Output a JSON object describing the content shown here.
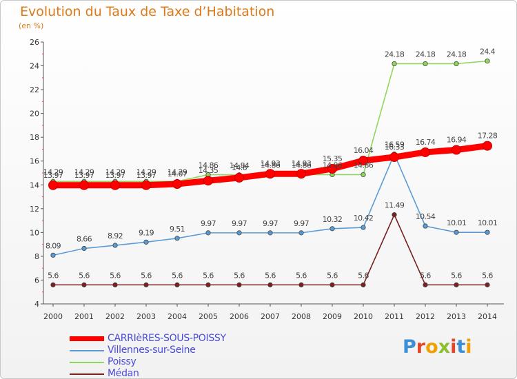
{
  "title": "Evolution du Taux de Taxe d’Habitation",
  "subtitle": "(en %)",
  "brand": {
    "name": "Proxiti",
    "letter_colors": [
      "#3a8fd6",
      "#e2452a",
      "#f0a000",
      "#8bc02c",
      "#e2452a",
      "#3a8fd6",
      "#f0a000"
    ]
  },
  "chart_data": {
    "type": "line",
    "title": "Evolution du Taux de Taxe d’Habitation",
    "ylabel": "(en %)",
    "xlabel": "",
    "x": [
      "2000",
      "2001",
      "2002",
      "2003",
      "2004",
      "2005",
      "2006",
      "2007",
      "2008",
      "2009",
      "2010",
      "2011",
      "2012",
      "2013",
      "2014"
    ],
    "ylim": [
      4,
      26
    ],
    "yticks": [
      4,
      6,
      8,
      10,
      12,
      14,
      16,
      18,
      20,
      22,
      24,
      26
    ],
    "grid": false,
    "legend_position": "bottom-left",
    "series": [
      {
        "name": "CARRIèRES-SOUS-POISSY",
        "color": "#ff0000",
        "highlight": true,
        "values": [
          13.97,
          13.97,
          13.97,
          13.97,
          14.07,
          14.35,
          14.6,
          14.93,
          14.93,
          15.35,
          16.04,
          16.33,
          16.74,
          16.94,
          17.28
        ]
      },
      {
        "name": "Villennes-sur-Seine",
        "color": "#5b9bd5",
        "highlight": false,
        "values": [
          8.09,
          8.66,
          8.92,
          9.19,
          9.51,
          9.97,
          9.97,
          9.97,
          9.97,
          10.32,
          10.42,
          16.59,
          10.54,
          10.01,
          10.01
        ]
      },
      {
        "name": "Poissy",
        "color": "#8fd65c",
        "highlight": false,
        "values": [
          14.29,
          14.29,
          14.29,
          14.29,
          14.29,
          14.86,
          14.84,
          14.86,
          14.86,
          14.86,
          14.86,
          24.18,
          24.18,
          24.18,
          24.4
        ]
      },
      {
        "name": "Médan",
        "color": "#7a2020",
        "highlight": false,
        "values": [
          5.6,
          5.6,
          5.6,
          5.6,
          5.6,
          5.6,
          5.6,
          5.6,
          5.6,
          5.6,
          5.6,
          11.49,
          5.6,
          5.6,
          5.6
        ]
      }
    ],
    "data_labels": [
      [
        "13.97",
        "13.97",
        "13.97",
        "13.97",
        "14.07",
        "14.35",
        "14.6",
        "14.93",
        "14.93",
        "15.35",
        "16.04",
        "16.33",
        "16.74",
        "16.94",
        "17.28"
      ],
      [
        "8.09",
        "8.66",
        "8.92",
        "9.19",
        "9.51",
        "9.97",
        "9.97",
        "9.97",
        "9.97",
        "10.32",
        "10.42",
        "16.59",
        "10.54",
        "10.01",
        "10.01"
      ],
      [
        "14.29",
        "14.29",
        "14.29",
        "14.29",
        "14.29",
        "14.86",
        "14.84",
        "14.86",
        "14.86",
        "14.86",
        "14.86",
        "24.18",
        "24.18",
        "24.18",
        "24.4"
      ],
      [
        "5.6",
        "5.6",
        "5.6",
        "5.6",
        "5.6",
        "5.6",
        "5.6",
        "5.6",
        "5.6",
        "5.6",
        "5.6",
        "11.49",
        "5.6",
        "5.6",
        "5.6"
      ]
    ]
  }
}
